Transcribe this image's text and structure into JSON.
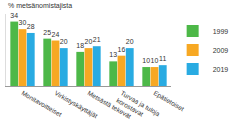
{
  "chart_data": {
    "type": "bar",
    "ylabel": "% metsänomistajista",
    "categories": [
      "Monitavoitteiset",
      "Virkistyskäyttäjät",
      "Metsästä tekevät",
      "Turvaa ja tuloja korostavat",
      "Epätietoiset"
    ],
    "series": [
      {
        "name": "1999",
        "color": "#4db848",
        "values": [
          34,
          25,
          18,
          13,
          10
        ]
      },
      {
        "name": "2009",
        "color": "#f7a823",
        "values": [
          30,
          24,
          20,
          16,
          10
        ]
      },
      {
        "name": "2019",
        "color": "#29abe2",
        "values": [
          28,
          20,
          21,
          20,
          11
        ]
      }
    ],
    "ylim": [
      0,
      38
    ],
    "grid": false,
    "legend": "right",
    "data_labels": true,
    "tick_labels": "x"
  }
}
